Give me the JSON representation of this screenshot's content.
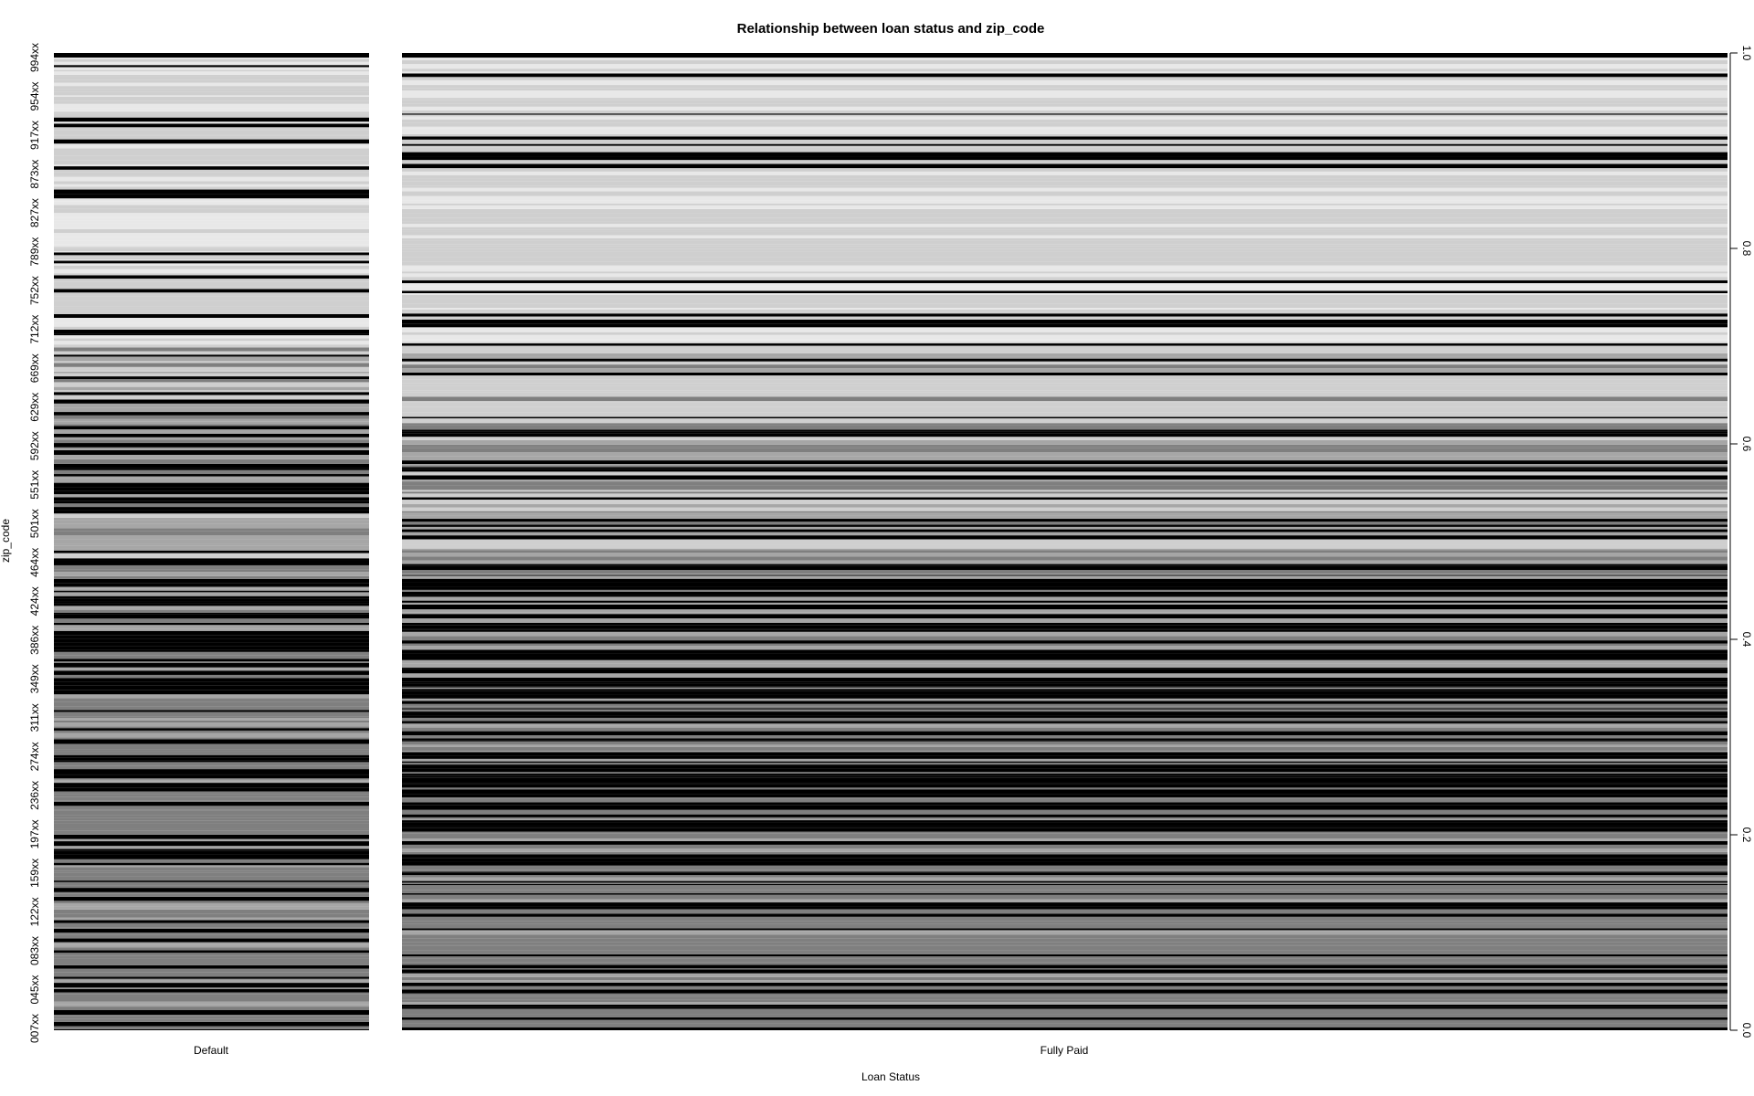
{
  "chart_data": {
    "type": "mosaic",
    "title": "Relationship between loan status and  zip_code",
    "xlabel": "Loan Status",
    "ylabel": "zip_code",
    "columns": [
      {
        "name": "Default",
        "width_share": 0.192
      },
      {
        "name": "Fully Paid",
        "width_share": 0.808
      }
    ],
    "zip_tick_labels": [
      "007xx",
      "045xx",
      "083xx",
      "122xx",
      "159xx",
      "197xx",
      "236xx",
      "274xx",
      "311xx",
      "349xx",
      "386xx",
      "424xx",
      "464xx",
      "501xx",
      "551xx",
      "592xx",
      "629xx",
      "669xx",
      "712xx",
      "752xx",
      "789xx",
      "827xx",
      "873xx",
      "917xx",
      "954xx",
      "994xx"
    ],
    "right_axis": {
      "ticks": [
        "0.0",
        "0.2",
        "0.4",
        "0.6",
        "0.8",
        "1.0"
      ],
      "ylim": [
        0,
        1
      ]
    },
    "colors": {
      "level_1": "#000000",
      "level_2": "#7f7f7f",
      "level_3": "#a6a6a6",
      "level_4": "#cfcfcf",
      "level_5": "#e8e8e8",
      "separator": "#ffffff"
    }
  }
}
